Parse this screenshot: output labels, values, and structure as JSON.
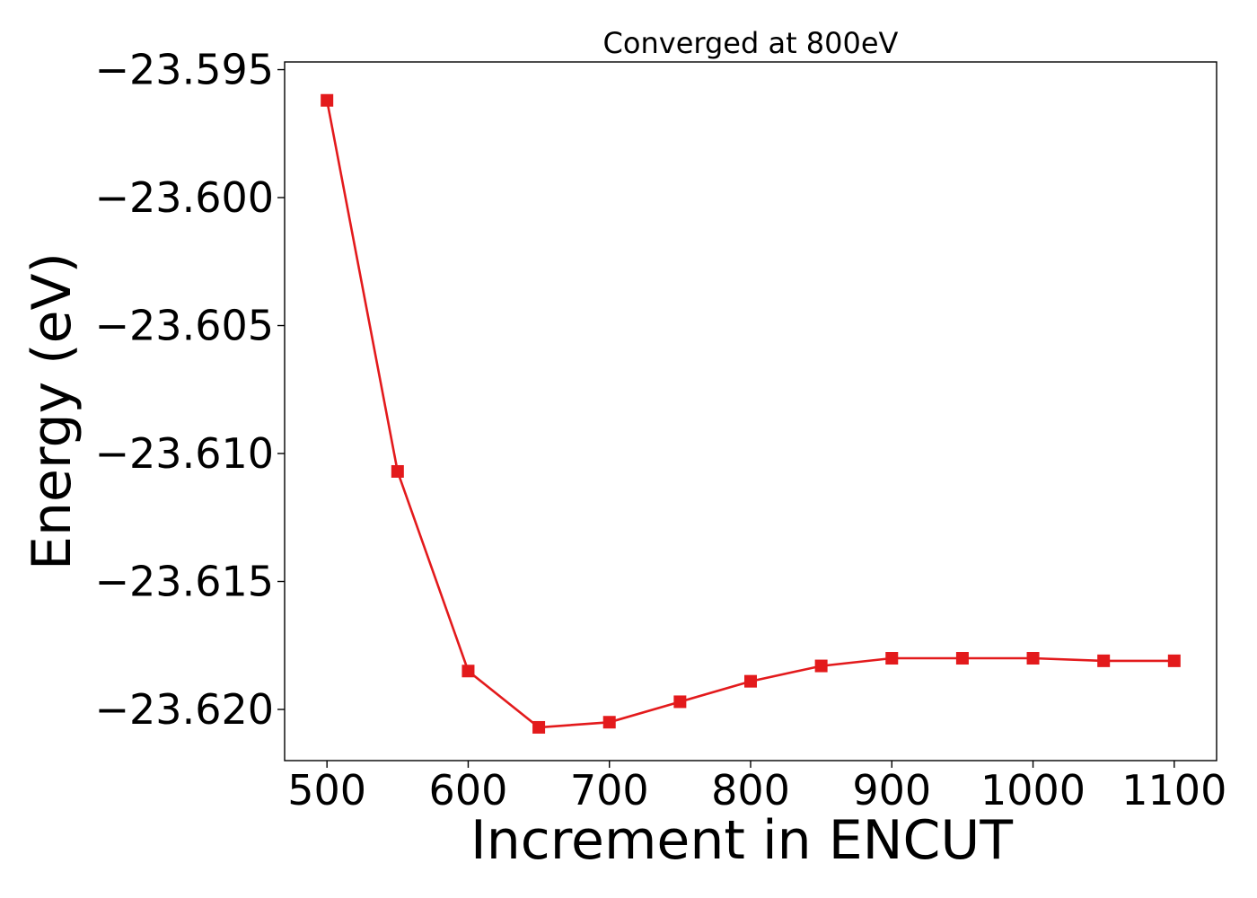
{
  "chart_data": {
    "type": "line",
    "title": "Converged at 800eV",
    "xlabel": "Increment in ENCUT",
    "ylabel": "Energy (eV)",
    "xlim": [
      470,
      1130
    ],
    "ylim": [
      -23.622,
      -23.5947
    ],
    "x_ticks": [
      500,
      600,
      700,
      800,
      900,
      1000,
      1100
    ],
    "x_tick_labels": [
      "500",
      "600",
      "700",
      "800",
      "900",
      "1000",
      "1100"
    ],
    "y_ticks": [
      -23.595,
      -23.6,
      -23.605,
      -23.61,
      -23.615,
      -23.62
    ],
    "y_tick_labels": [
      "−23.595",
      "−23.600",
      "−23.605",
      "−23.610",
      "−23.615",
      "−23.620"
    ],
    "grid": false,
    "series": [
      {
        "color": "#e31a1c",
        "marker": "square",
        "x": [
          500,
          550,
          600,
          650,
          700,
          750,
          800,
          850,
          900,
          950,
          1000,
          1050,
          1100
        ],
        "y": [
          -23.5962,
          -23.6107,
          -23.6185,
          -23.6207,
          -23.6205,
          -23.6197,
          -23.6189,
          -23.6183,
          -23.618,
          -23.618,
          -23.618,
          -23.6181,
          -23.6181
        ]
      }
    ]
  }
}
